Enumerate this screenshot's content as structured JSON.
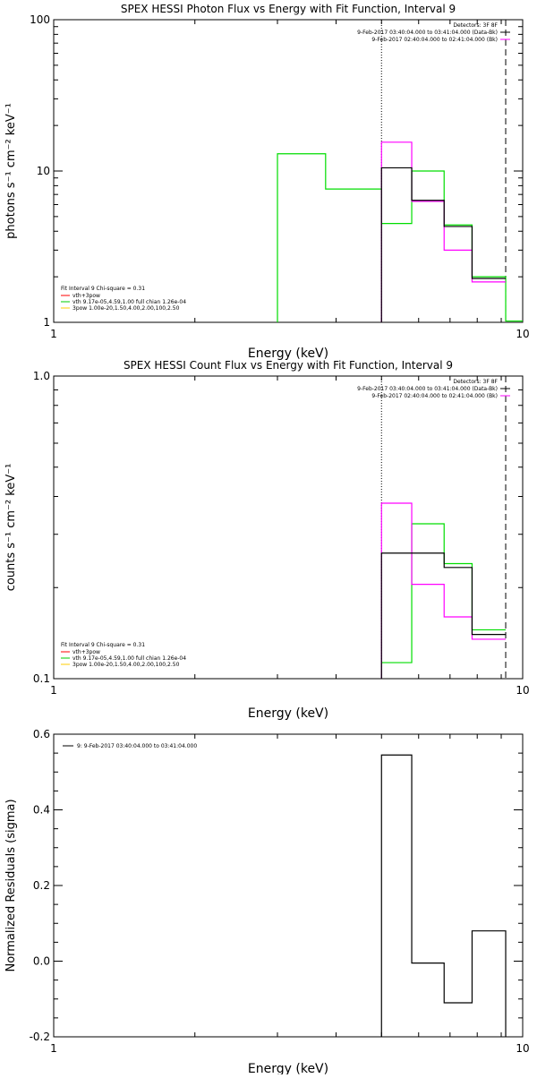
{
  "chart_data": [
    {
      "type": "line",
      "title": "SPEX HESSI Photon Flux vs Energy with Fit Function, Interval 9",
      "xlabel": "Energy (keV)",
      "ylabel": "photons s⁻¹ cm⁻² keV⁻¹",
      "xscale": "log",
      "yscale": "log",
      "xlim": [
        1,
        10
      ],
      "ylim": [
        1,
        100
      ],
      "xticks": [
        1,
        10
      ],
      "xtick_labels": [
        "1",
        "10"
      ],
      "yticks": [
        1,
        10,
        100
      ],
      "ytick_labels": [
        "1",
        "10",
        "100"
      ],
      "vlines": [
        {
          "x": 5.0,
          "style": "dotted"
        },
        {
          "x": 9.2,
          "style": "dashed"
        }
      ],
      "legend_top": [
        "Detectors: 3F 8F",
        "9-Feb-2017 03:40:04.000 to 03:41:04.000 (Data-Bk)",
        "9-Feb-2017 02:40:04.000 to 02:41:04.000 (Bk)"
      ],
      "legend_top_colors": [
        "#000000",
        "#ff00ff"
      ],
      "legend_bottom_header": "Fit Interval 9   Chi-square = 0.31",
      "legend_bottom": [
        "vth+3pow",
        "vth 9.17e-05,4.59,1.00  full chian 1.26e-04",
        "3pow 1.00e-20,1.50,4.00,2.00,100,2.50"
      ],
      "legend_bottom_colors": [
        "#ff0000",
        "#00cc00",
        "#ffcc00"
      ],
      "series": [
        {
          "color": "#00dd00",
          "edges": [
            3.0,
            3.8,
            5.0,
            5.8,
            6.8,
            7.8,
            9.2,
            10.0
          ],
          "values": [
            13.0,
            7.6,
            4.5,
            10.0,
            4.4,
            2.0,
            1.02
          ]
        },
        {
          "color": "#ff00ff",
          "edges": [
            5.0,
            5.8,
            6.8,
            7.8,
            9.2
          ],
          "values": [
            15.5,
            6.3,
            3.0,
            1.85
          ]
        },
        {
          "color": "#000000",
          "edges": [
            5.0,
            5.8,
            6.8,
            7.8,
            9.2
          ],
          "values": [
            10.5,
            6.4,
            4.3,
            1.95
          ]
        }
      ]
    },
    {
      "type": "line",
      "title": "SPEX HESSI Count Flux vs Energy with Fit Function, Interval 9",
      "xlabel": "Energy (keV)",
      "ylabel": "counts s⁻¹ cm⁻² keV⁻¹",
      "xscale": "log",
      "yscale": "log",
      "xlim": [
        1,
        10
      ],
      "ylim": [
        0.1,
        1.0
      ],
      "xticks": [
        1,
        10
      ],
      "xtick_labels": [
        "1",
        "10"
      ],
      "yticks": [
        0.1,
        1.0
      ],
      "ytick_labels": [
        "0.1",
        "1.0"
      ],
      "vlines": [
        {
          "x": 5.0,
          "style": "dotted"
        },
        {
          "x": 9.2,
          "style": "dashed"
        }
      ],
      "legend_top": [
        "Detectors: 3F 8F",
        "9-Feb-2017 03:40:04.000 to 03:41:04.000 (Data-Bk)",
        "9-Feb-2017 02:40:04.000 to 02:41:04.000 (Bk)"
      ],
      "legend_top_colors": [
        "#000000",
        "#ff00ff"
      ],
      "legend_bottom_header": "Fit Interval 9   Chi-square = 0.31",
      "legend_bottom": [
        "vth+3pow",
        "vth 9.17e-05,4.59,1.00  full chian 1.26e-04",
        "3pow 1.00e-20,1.50,4.00,2.00,100,2.50"
      ],
      "legend_bottom_colors": [
        "#ff0000",
        "#00cc00",
        "#ffcc00"
      ],
      "series": [
        {
          "color": "#00dd00",
          "edges": [
            5.0,
            5.8,
            6.8,
            7.8,
            9.2
          ],
          "values": [
            0.113,
            0.325,
            0.24,
            0.145
          ]
        },
        {
          "color": "#ff00ff",
          "edges": [
            5.0,
            5.8,
            6.8,
            7.8,
            9.2
          ],
          "values": [
            0.38,
            0.205,
            0.16,
            0.135
          ]
        },
        {
          "color": "#000000",
          "edges": [
            5.0,
            5.8,
            6.8,
            7.8,
            9.2
          ],
          "values": [
            0.26,
            0.26,
            0.233,
            0.14
          ]
        }
      ]
    },
    {
      "type": "line",
      "title": "",
      "xlabel": "Energy (keV)",
      "ylabel": "Normalized Residuals (sigma)",
      "xscale": "log",
      "yscale": "linear",
      "xlim": [
        1,
        10
      ],
      "ylim": [
        -0.2,
        0.6
      ],
      "xticks": [
        1,
        10
      ],
      "xtick_labels": [
        "1",
        "10"
      ],
      "yticks": [
        -0.2,
        0.0,
        0.2,
        0.4,
        0.6
      ],
      "ytick_labels": [
        "-0.2",
        "0.0",
        "0.2",
        "0.4",
        "0.6"
      ],
      "vlines": [],
      "legend_top": [],
      "legend_top_colors": [],
      "legend_left": [
        "9: 9-Feb-2017 03:40:04.000 to 03:41:04.000"
      ],
      "legend_left_colors": [
        "#000000"
      ],
      "legend_bottom_header": "",
      "legend_bottom": [],
      "legend_bottom_colors": [],
      "series": [
        {
          "color": "#000000",
          "edges": [
            5.0,
            5.8,
            6.8,
            7.8,
            9.2
          ],
          "values": [
            0.545,
            -0.005,
            -0.11,
            0.08
          ],
          "drop_to_axis": true
        }
      ]
    }
  ]
}
